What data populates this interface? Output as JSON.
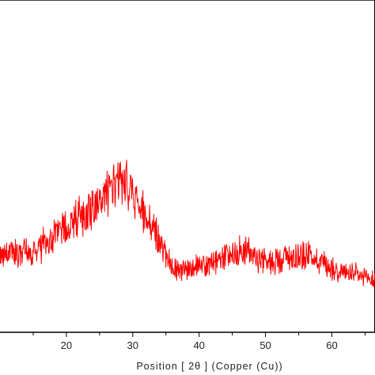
{
  "chart_data": {
    "type": "line",
    "title": "",
    "xlabel": "Position [ 2θ ] (Copper (Cu))",
    "ylabel": "",
    "xlim": [
      10,
      66.5
    ],
    "ylim": [
      0,
      100
    ],
    "grid": false,
    "legend": "none",
    "x_ticks": [
      20,
      30,
      40,
      50,
      60
    ],
    "x_tick_labels": [
      "20",
      "30",
      "40",
      "50",
      "60"
    ],
    "y_ticks_shown": false,
    "series": [
      {
        "color": "#ff0000",
        "x": [
          10,
          11,
          12,
          13,
          14,
          15,
          16,
          17,
          18,
          19,
          20,
          21,
          22,
          23,
          24,
          25,
          26,
          27,
          28,
          28.6,
          29,
          29.5,
          30,
          31,
          32,
          33,
          34,
          35,
          36,
          37,
          38,
          39,
          40,
          41,
          42,
          43,
          44,
          45,
          46,
          47,
          48,
          49,
          50,
          51,
          52,
          53,
          54,
          55,
          56,
          57,
          58,
          59,
          60,
          61,
          62,
          63,
          64,
          65,
          66.5
        ],
        "y": [
          27,
          27.5,
          28,
          28.5,
          29,
          29.5,
          31,
          33,
          36,
          39,
          42,
          44.5,
          47,
          50,
          52.5,
          55,
          58,
          61,
          64,
          67,
          64.5,
          61.5,
          58.5,
          53,
          47,
          41,
          33,
          26,
          21,
          20,
          20,
          20.5,
          21,
          21.5,
          22,
          23.5,
          25.5,
          27.5,
          29,
          29,
          27,
          24.5,
          23,
          23.5,
          24.5,
          25.5,
          26,
          26.5,
          27,
          26,
          24.5,
          22,
          20,
          18.5,
          17.5,
          16.5,
          15.5,
          14,
          14
        ]
      }
    ]
  }
}
